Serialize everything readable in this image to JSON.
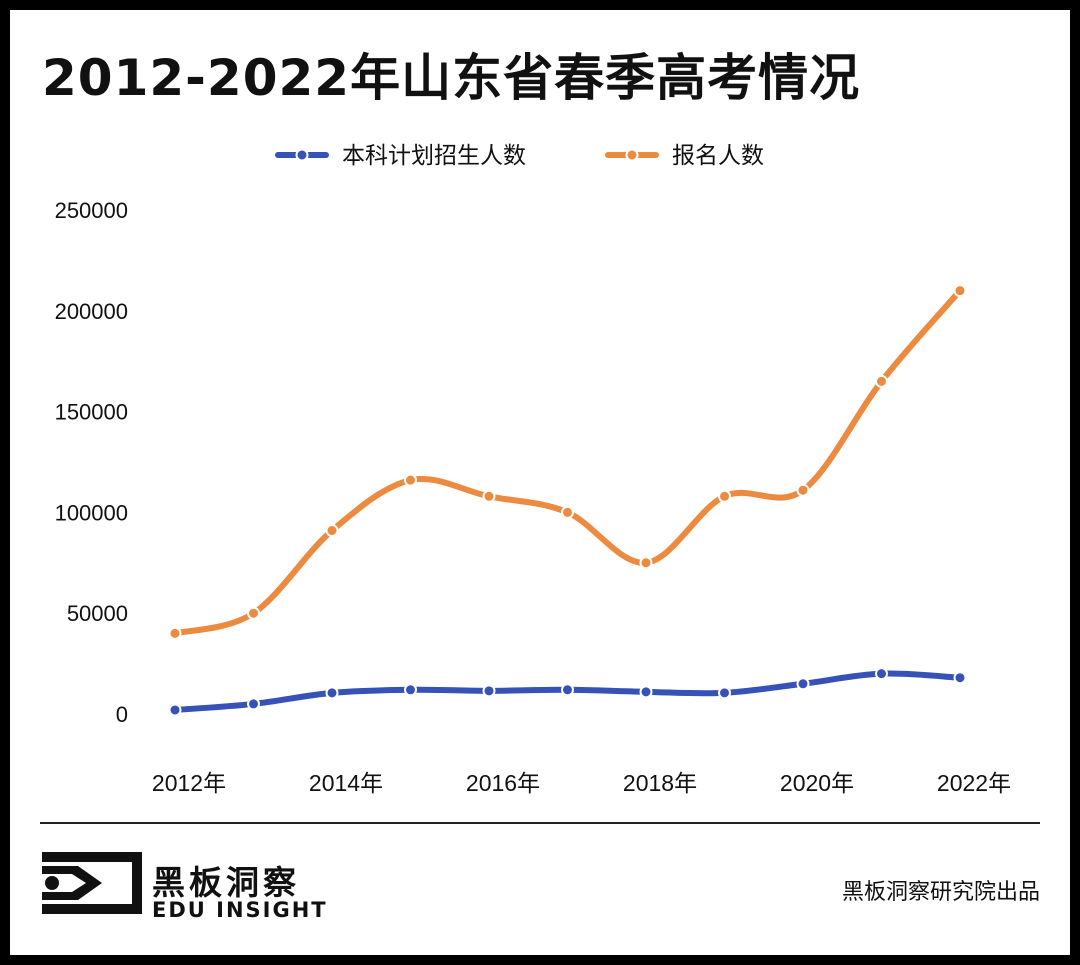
{
  "title": "2012-2022年山东省春季高考情况",
  "brand": {
    "name_cn": "黑板洞察",
    "name_en": "EDU INSIGHT"
  },
  "credit": "黑板洞察研究院出品",
  "colors": {
    "blue": "#3651b8",
    "orange": "#ec8a3f",
    "axis_text": "#111111"
  },
  "chart_data": {
    "type": "line",
    "title": "2012-2022年山东省春季高考情况",
    "x": [
      "2012",
      "2013",
      "2014",
      "2015",
      "2016",
      "2017",
      "2018",
      "2019",
      "2020",
      "2021",
      "2022"
    ],
    "x_tick_labels": [
      "2012年",
      "2014年",
      "2016年",
      "2018年",
      "2020年",
      "2022年"
    ],
    "x_tick_positions": [
      "2012",
      "2014",
      "2016",
      "2018",
      "2020",
      "2022"
    ],
    "y_ticks": [
      0,
      50000,
      100000,
      150000,
      200000,
      250000
    ],
    "ylim": [
      0,
      250000
    ],
    "xlabel": "",
    "ylabel": "",
    "legend": "top-center",
    "grid": false,
    "series": [
      {
        "name": "本科计划招生人数",
        "color": "#3651b8",
        "values": [
          2000,
          5000,
          10500,
          12000,
          11500,
          12000,
          11000,
          10500,
          15000,
          20000,
          18000
        ]
      },
      {
        "name": "报名人数",
        "color": "#ec8a3f",
        "values": [
          40000,
          50000,
          91000,
          116000,
          108000,
          100000,
          75000,
          108000,
          111000,
          165000,
          210000
        ]
      }
    ]
  }
}
